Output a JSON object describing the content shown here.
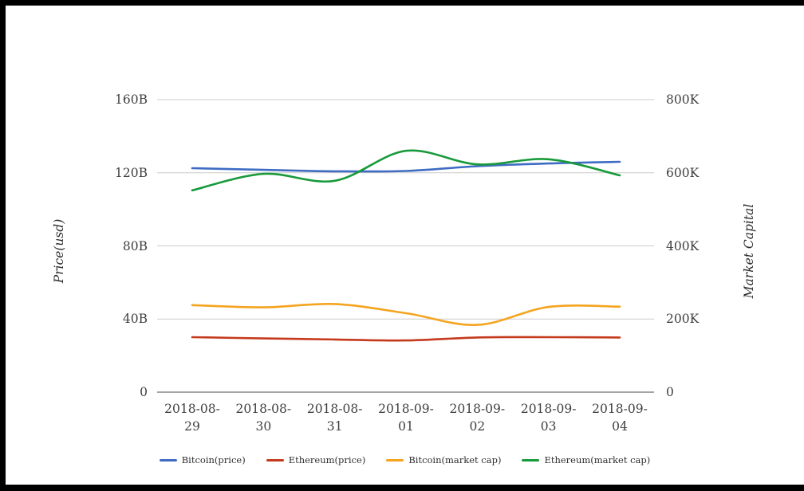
{
  "chart_data": {
    "type": "line",
    "x": [
      "2018-08-29",
      "2018-08-30",
      "2018-08-31",
      "2018-09-01",
      "2018-09-02",
      "2018-09-03",
      "2018-09-04"
    ],
    "left_axis": {
      "title": "Price(usd)",
      "min": 0,
      "max": 160,
      "ticks": [
        {
          "label": "160B",
          "value": 160
        },
        {
          "label": "120B",
          "value": 120
        },
        {
          "label": "80B",
          "value": 80
        },
        {
          "label": "40B",
          "value": 40
        },
        {
          "label": "0",
          "value": 0
        }
      ]
    },
    "right_axis": {
      "title": "Market Capital",
      "min": 0,
      "max": 800,
      "ticks": [
        {
          "label": "800K",
          "value": 800
        },
        {
          "label": "600K",
          "value": 600
        },
        {
          "label": "400K",
          "value": 400
        },
        {
          "label": "200K",
          "value": 200
        },
        {
          "label": "0",
          "value": 0
        }
      ]
    },
    "series": [
      {
        "name": "Bitcoin(price)",
        "axis": "left",
        "color": "#3e6cc3",
        "values": [
          122.5,
          121.6,
          120.8,
          121.0,
          123.6,
          125.1,
          126.0
        ]
      },
      {
        "name": "Ethereum(price)",
        "axis": "left",
        "color": "#c53a1d",
        "values": [
          30.1,
          29.4,
          28.8,
          28.3,
          29.9,
          30.1,
          29.9
        ]
      },
      {
        "name": "Bitcoin(market cap)",
        "axis": "right",
        "color": "#f4a41f",
        "values": [
          238,
          232,
          241,
          216,
          184,
          233,
          234
        ]
      },
      {
        "name": "Ethereum(market cap)",
        "axis": "right",
        "color": "#189a3a",
        "values": [
          552,
          597,
          578,
          660,
          623,
          637,
          593
        ]
      }
    ],
    "grid": true,
    "grid_color": "#cccccc",
    "axis_line_color": "#4a4a4a",
    "legend_position": "bottom"
  }
}
